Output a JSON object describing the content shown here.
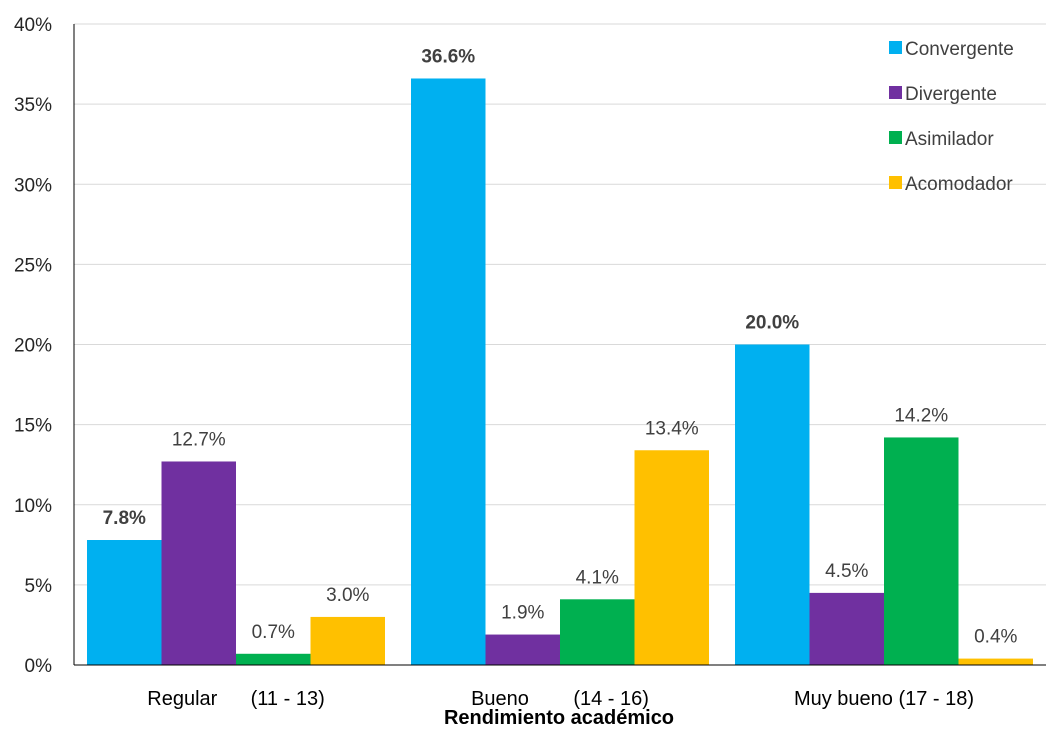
{
  "chart_data": {
    "type": "bar",
    "xlabel": "Rendimiento académico",
    "ylabel": "",
    "ylim": [
      0,
      40
    ],
    "yticks": [
      "0%",
      "5%",
      "10%",
      "15%",
      "20%",
      "25%",
      "30%",
      "35%",
      "40%"
    ],
    "grid": true,
    "legend_position": "top-right",
    "categories": [
      "Regular      (11 - 13)",
      "Bueno        (14 - 16)",
      "Muy bueno (17 - 18)"
    ],
    "series": [
      {
        "name": "Convergente",
        "color": "#00B0F0",
        "values": [
          7.8,
          36.6,
          20.0
        ],
        "labels": [
          "7.8%",
          "36.6%",
          "20.0%"
        ],
        "bold_labels": true
      },
      {
        "name": "Divergente",
        "color": "#7030A0",
        "values": [
          12.7,
          1.9,
          4.5
        ],
        "labels": [
          "12.7%",
          "1.9%",
          "4.5%"
        ],
        "bold_labels": false
      },
      {
        "name": "Asimilador",
        "color": "#00B050",
        "values": [
          0.7,
          4.1,
          14.2
        ],
        "labels": [
          "0.7%",
          "4.1%",
          "14.2%"
        ],
        "bold_labels": false
      },
      {
        "name": "Acomodador",
        "color": "#FFC000",
        "values": [
          3.0,
          13.4,
          0.4
        ],
        "labels": [
          "3.0%",
          "13.4%",
          "0.4%"
        ],
        "bold_labels": false
      }
    ]
  }
}
